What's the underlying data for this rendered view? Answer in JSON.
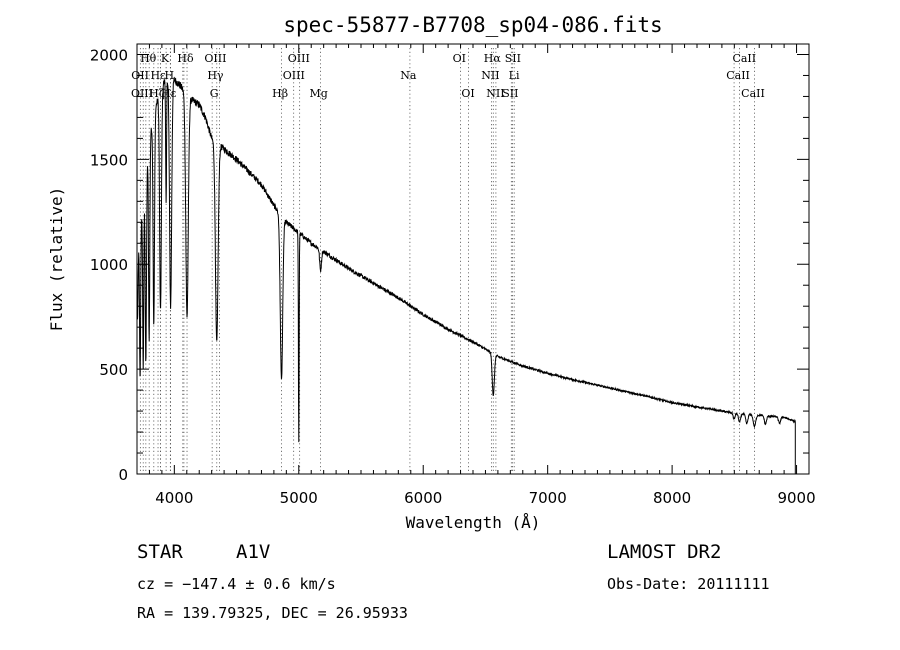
{
  "chart_data": {
    "type": "line",
    "title": "spec-55877-B7708_sp04-086.fits",
    "xlabel": "Wavelength (Å)",
    "ylabel": "Flux (relative)",
    "xlim": [
      3700,
      9100
    ],
    "ylim": [
      0,
      2050
    ],
    "xticks": [
      4000,
      5000,
      6000,
      7000,
      8000,
      9000
    ],
    "yticks": [
      0,
      500,
      1000,
      1500,
      2000
    ],
    "continuum": {
      "x": [
        3700,
        3750,
        3800,
        3850,
        3900,
        3950,
        4000,
        4050,
        4100,
        4150,
        4200,
        4250,
        4300,
        4400,
        4500,
        4600,
        4700,
        4800,
        4900,
        5000,
        5100,
        5200,
        5400,
        5600,
        5800,
        6000,
        6200,
        6400,
        6600,
        6800,
        7000,
        7200,
        7500,
        7800,
        8000,
        8300,
        8500,
        8700,
        8900,
        8990
      ],
      "y": [
        1000,
        1300,
        1600,
        1750,
        1850,
        1900,
        1880,
        1850,
        1800,
        1780,
        1760,
        1700,
        1600,
        1550,
        1500,
        1440,
        1380,
        1280,
        1200,
        1150,
        1100,
        1060,
        980,
        910,
        840,
        760,
        690,
        630,
        560,
        515,
        480,
        450,
        410,
        370,
        340,
        310,
        290,
        280,
        270,
        250
      ]
    },
    "absorption_lines": [
      {
        "x": 3705,
        "depth": 300,
        "width": 5
      },
      {
        "x": 3725,
        "depth": 700,
        "width": 6
      },
      {
        "x": 3750,
        "depth": 800,
        "width": 6
      },
      {
        "x": 3771,
        "depth": 900,
        "width": 7
      },
      {
        "x": 3798,
        "depth": 950,
        "width": 7
      },
      {
        "x": 3835,
        "depth": 1000,
        "width": 8
      },
      {
        "x": 3889,
        "depth": 1050,
        "width": 10
      },
      {
        "x": 3934,
        "depth": 600,
        "width": 5
      },
      {
        "x": 3970,
        "depth": 1100,
        "width": 12
      },
      {
        "x": 4102,
        "depth": 1050,
        "width": 14
      },
      {
        "x": 4341,
        "depth": 950,
        "width": 15
      },
      {
        "x": 4861,
        "depth": 780,
        "width": 14
      },
      {
        "x": 5000,
        "depth": 1000,
        "width": 4
      },
      {
        "x": 5175,
        "depth": 100,
        "width": 10
      },
      {
        "x": 6563,
        "depth": 200,
        "width": 12
      },
      {
        "x": 8498,
        "depth": 30,
        "width": 10
      },
      {
        "x": 8542,
        "depth": 40,
        "width": 12
      },
      {
        "x": 8600,
        "depth": 45,
        "width": 12
      },
      {
        "x": 8662,
        "depth": 55,
        "width": 14
      },
      {
        "x": 8750,
        "depth": 40,
        "width": 12
      },
      {
        "x": 8863,
        "depth": 30,
        "width": 12
      }
    ],
    "line_markers": [
      {
        "label": "Hθ",
        "x": 3798,
        "row": 0,
        "text_wl": 3790
      },
      {
        "label": "K",
        "x": 3934,
        "row": 0,
        "text_wl": 3925
      },
      {
        "label": "Hδ",
        "x": 4102,
        "row": 0,
        "text_wl": 4090
      },
      {
        "label": "OIII",
        "x": 4363,
        "row": 0,
        "text_wl": 4330
      },
      {
        "label": "OIII",
        "x": 5007,
        "row": 0,
        "text_wl": 5000
      },
      {
        "label": "OI",
        "x": 6300,
        "row": 0,
        "text_wl": 6290
      },
      {
        "label": "Hα",
        "x": 6563,
        "row": 0,
        "text_wl": 6555
      },
      {
        "label": "SII",
        "x": 6717,
        "row": 0,
        "text_wl": 6720
      },
      {
        "label": "CaII",
        "x": 8542,
        "row": 0,
        "text_wl": 8580
      },
      {
        "label": "OII",
        "x": 3727,
        "row": 1,
        "text_wl": 3725
      },
      {
        "label": "Hε",
        "x": 3970,
        "row": 1,
        "text_wl": 3870
      },
      {
        "label": "H",
        "x": 3968,
        "row": 1,
        "text_wl": 3960
      },
      {
        "label": "Hγ",
        "x": 4341,
        "row": 1,
        "text_wl": 4330
      },
      {
        "label": "OIII",
        "x": 4959,
        "row": 1,
        "text_wl": 4960
      },
      {
        "label": "Na",
        "x": 5893,
        "row": 1,
        "text_wl": 5880
      },
      {
        "label": "NII",
        "x": 6548,
        "row": 1,
        "text_wl": 6540
      },
      {
        "label": "Li",
        "x": 6708,
        "row": 1,
        "text_wl": 6730
      },
      {
        "label": "CaII",
        "x": 8498,
        "row": 1,
        "text_wl": 8530
      },
      {
        "label": "OIII",
        "x": 3869,
        "row": 2,
        "text_wl": 3740
      },
      {
        "label": "Hζ",
        "x": 3889,
        "row": 2,
        "text_wl": 3860
      },
      {
        "label": "Hε",
        "x": 3970,
        "row": 2,
        "text_wl": 3955
      },
      {
        "label": "G",
        "x": 4304,
        "row": 2,
        "text_wl": 4320
      },
      {
        "label": "Hβ",
        "x": 4861,
        "row": 2,
        "text_wl": 4850
      },
      {
        "label": "Mg",
        "x": 5175,
        "row": 2,
        "text_wl": 5160
      },
      {
        "label": "OI",
        "x": 6364,
        "row": 2,
        "text_wl": 6360
      },
      {
        "label": "NII",
        "x": 6584,
        "row": 2,
        "text_wl": 6580
      },
      {
        "label": "SII",
        "x": 6731,
        "row": 2,
        "text_wl": 6700
      },
      {
        "label": "CaII",
        "x": 8662,
        "row": 2,
        "text_wl": 8650
      }
    ],
    "extra_marker_x": [
      3750,
      3771,
      3835,
      3889,
      4068,
      4077
    ]
  },
  "info": {
    "object_type": "STAR",
    "subclass": "A1V",
    "survey": "LAMOST DR2",
    "redshift": "cz = −147.4 ± 0.6 km/s",
    "obs_date": "Obs-Date: 20111111",
    "coords": "RA = 139.79325, DEC =  26.95933"
  }
}
